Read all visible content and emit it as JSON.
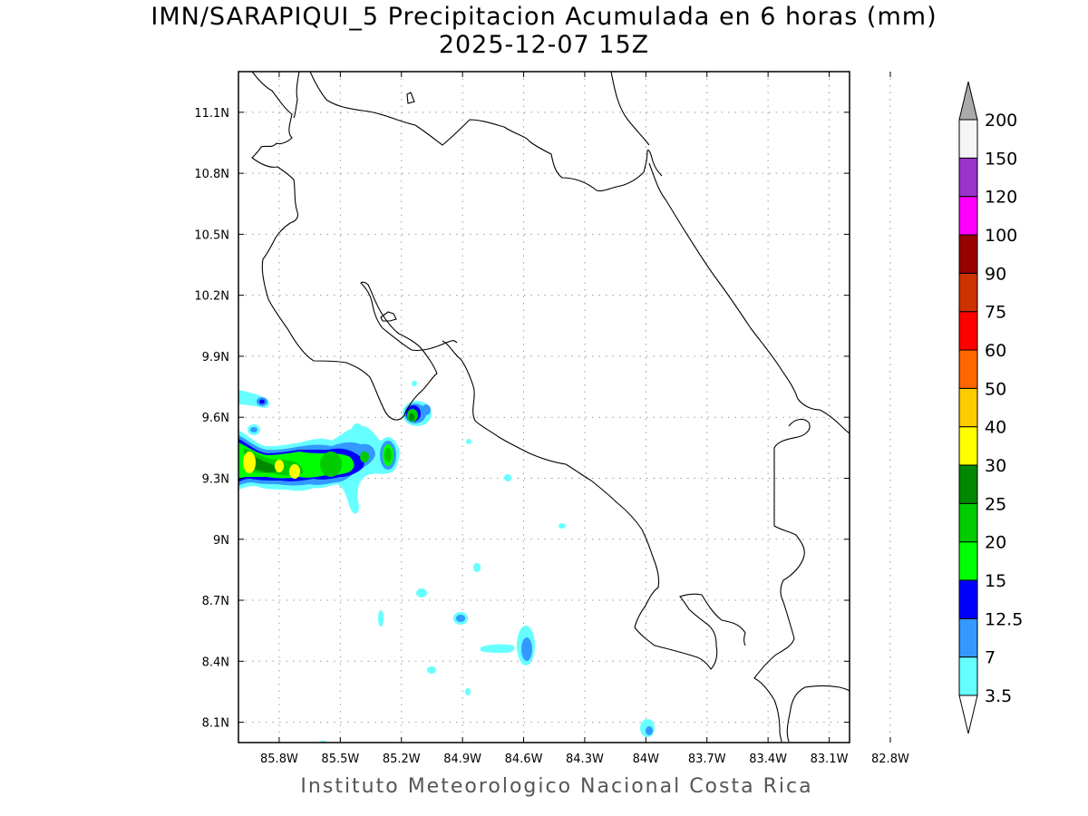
{
  "title": "IMN/SARAPIQUI_5 Precipitacion Acumulada en 6 horas (mm)",
  "subtitle": "2025-12-07 15Z",
  "credit": "Instituto Meteorologico Nacional Costa Rica",
  "map": {
    "lon_range": [
      -86.0,
      -83.0
    ],
    "lat_range": [
      8.0,
      11.3
    ],
    "lon_ticks": [
      "85.8W",
      "85.5W",
      "85.2W",
      "84.9W",
      "84.6W",
      "84.3W",
      "84W",
      "83.7W",
      "83.4W",
      "83.1W",
      "82.8W"
    ],
    "lat_ticks": [
      "8.1N",
      "8.4N",
      "8.7N",
      "9N",
      "9.3N",
      "9.6N",
      "9.9N",
      "10.2N",
      "10.5N",
      "10.8N",
      "11.1N"
    ],
    "grid": "dotted"
  },
  "colorbar": {
    "levels": [
      "3.5",
      "7",
      "12.5",
      "15",
      "20",
      "25",
      "30",
      "40",
      "50",
      "60",
      "75",
      "90",
      "100",
      "120",
      "150",
      "200"
    ],
    "colors": [
      "#66ffff",
      "#3399ff",
      "#0000ff",
      "#00ff00",
      "#00cc00",
      "#008800",
      "#ffff00",
      "#ffcc00",
      "#ff6600",
      "#ff0000",
      "#cc3300",
      "#990000",
      "#ff00ff",
      "#9933cc",
      "#f5f5f5"
    ],
    "over_color": "#aaaaaa",
    "under_color": "#ffffff"
  }
}
